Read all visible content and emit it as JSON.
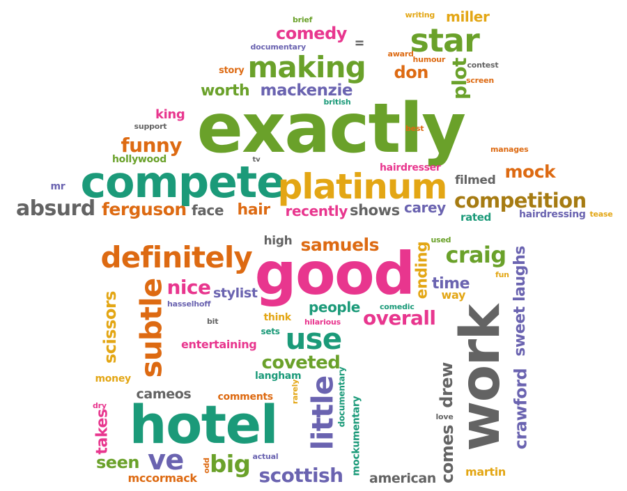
{
  "palette": {
    "green": "#6aa12a",
    "teal": "#1b9a79",
    "orange": "#dd6a12",
    "pink": "#e8368e",
    "purple": "#6a63b0",
    "gold": "#e3a614",
    "gray": "#636363",
    "brown": "#a67b12"
  },
  "words": [
    {
      "text": "exactly",
      "color": "green",
      "vertical": false
    },
    {
      "text": "compete",
      "color": "teal",
      "vertical": false
    },
    {
      "text": "platinum",
      "color": "gold",
      "vertical": false
    },
    {
      "text": "making",
      "color": "green",
      "vertical": false
    },
    {
      "text": "star",
      "color": "green",
      "vertical": false
    },
    {
      "text": "comedy",
      "color": "pink",
      "vertical": false
    },
    {
      "text": "miller",
      "color": "gold",
      "vertical": false
    },
    {
      "text": "brief",
      "color": "green",
      "vertical": false
    },
    {
      "text": "writing",
      "color": "gold",
      "vertical": false
    },
    {
      "text": "documentary",
      "color": "purple",
      "vertical": false
    },
    {
      "text": "ll",
      "color": "gray",
      "vertical": true
    },
    {
      "text": "award",
      "color": "orange",
      "vertical": false
    },
    {
      "text": "humour",
      "color": "orange",
      "vertical": false
    },
    {
      "text": "contest",
      "color": "gray",
      "vertical": false
    },
    {
      "text": "story",
      "color": "orange",
      "vertical": false
    },
    {
      "text": "don",
      "color": "orange",
      "vertical": false
    },
    {
      "text": "plot",
      "color": "green",
      "vertical": true
    },
    {
      "text": "screen",
      "color": "orange",
      "vertical": false
    },
    {
      "text": "worth",
      "color": "green",
      "vertical": false
    },
    {
      "text": "mackenzie",
      "color": "purple",
      "vertical": false
    },
    {
      "text": "british",
      "color": "teal",
      "vertical": false
    },
    {
      "text": "king",
      "color": "pink",
      "vertical": false
    },
    {
      "text": "support",
      "color": "gray",
      "vertical": false
    },
    {
      "text": "best",
      "color": "orange",
      "vertical": false
    },
    {
      "text": "funny",
      "color": "orange",
      "vertical": false
    },
    {
      "text": "hollywood",
      "color": "green",
      "vertical": false
    },
    {
      "text": "tv",
      "color": "gray",
      "vertical": false
    },
    {
      "text": "manages",
      "color": "orange",
      "vertical": false
    },
    {
      "text": "hairdresser",
      "color": "pink",
      "vertical": false
    },
    {
      "text": "mock",
      "color": "orange",
      "vertical": false
    },
    {
      "text": "filmed",
      "color": "gray",
      "vertical": false
    },
    {
      "text": "mr",
      "color": "purple",
      "vertical": false
    },
    {
      "text": "competition",
      "color": "brown",
      "vertical": false
    },
    {
      "text": "absurd",
      "color": "gray",
      "vertical": false
    },
    {
      "text": "ferguson",
      "color": "orange",
      "vertical": false
    },
    {
      "text": "face",
      "color": "gray",
      "vertical": false
    },
    {
      "text": "hair",
      "color": "orange",
      "vertical": false
    },
    {
      "text": "recently",
      "color": "pink",
      "vertical": false
    },
    {
      "text": "shows",
      "color": "gray",
      "vertical": false
    },
    {
      "text": "carey",
      "color": "purple",
      "vertical": false
    },
    {
      "text": "rated",
      "color": "teal",
      "vertical": false
    },
    {
      "text": "hairdressing",
      "color": "purple",
      "vertical": false
    },
    {
      "text": "tease",
      "color": "gold",
      "vertical": false
    },
    {
      "text": "definitely",
      "color": "orange",
      "vertical": false
    },
    {
      "text": "high",
      "color": "gray",
      "vertical": false
    },
    {
      "text": "samuels",
      "color": "orange",
      "vertical": false
    },
    {
      "text": "good",
      "color": "pink",
      "vertical": false
    },
    {
      "text": "ending",
      "color": "gold",
      "vertical": true
    },
    {
      "text": "used",
      "color": "green",
      "vertical": false
    },
    {
      "text": "craig",
      "color": "green",
      "vertical": false
    },
    {
      "text": "laughs",
      "color": "purple",
      "vertical": true
    },
    {
      "text": "fun",
      "color": "gold",
      "vertical": false
    },
    {
      "text": "subtle",
      "color": "orange",
      "vertical": true
    },
    {
      "text": "nice",
      "color": "pink",
      "vertical": false
    },
    {
      "text": "stylist",
      "color": "purple",
      "vertical": false
    },
    {
      "text": "time",
      "color": "purple",
      "vertical": false
    },
    {
      "text": "way",
      "color": "gold",
      "vertical": false
    },
    {
      "text": "hasselhoff",
      "color": "purple",
      "vertical": false
    },
    {
      "text": "people",
      "color": "teal",
      "vertical": false
    },
    {
      "text": "comedic",
      "color": "teal",
      "vertical": false
    },
    {
      "text": "scissors",
      "color": "gold",
      "vertical": true
    },
    {
      "text": "bit",
      "color": "gray",
      "vertical": false
    },
    {
      "text": "think",
      "color": "gold",
      "vertical": false
    },
    {
      "text": "hilarious",
      "color": "pink",
      "vertical": false
    },
    {
      "text": "overall",
      "color": "pink",
      "vertical": false
    },
    {
      "text": "work",
      "color": "gray",
      "vertical": true
    },
    {
      "text": "sweet",
      "color": "purple",
      "vertical": true
    },
    {
      "text": "sets",
      "color": "teal",
      "vertical": false
    },
    {
      "text": "use",
      "color": "teal",
      "vertical": false
    },
    {
      "text": "entertaining",
      "color": "pink",
      "vertical": false
    },
    {
      "text": "coveted",
      "color": "green",
      "vertical": false
    },
    {
      "text": "drew",
      "color": "gray",
      "vertical": true
    },
    {
      "text": "crawford",
      "color": "purple",
      "vertical": true
    },
    {
      "text": "money",
      "color": "gold",
      "vertical": false
    },
    {
      "text": "langham",
      "color": "teal",
      "vertical": false
    },
    {
      "text": "rarely",
      "color": "gold",
      "vertical": true
    },
    {
      "text": "documentary",
      "color": "teal",
      "vertical": true
    },
    {
      "text": "little",
      "color": "purple",
      "vertical": true
    },
    {
      "text": "cameos",
      "color": "gray",
      "vertical": false
    },
    {
      "text": "comments",
      "color": "orange",
      "vertical": false
    },
    {
      "text": "dry",
      "color": "pink",
      "vertical": false
    },
    {
      "text": "love",
      "color": "gray",
      "vertical": false
    },
    {
      "text": "hotel",
      "color": "teal",
      "vertical": false
    },
    {
      "text": "takes",
      "color": "pink",
      "vertical": true
    },
    {
      "text": "mockumentary",
      "color": "teal",
      "vertical": true
    },
    {
      "text": "comes",
      "color": "gray",
      "vertical": true
    },
    {
      "text": "ve",
      "color": "purple",
      "vertical": false
    },
    {
      "text": "seen",
      "color": "green",
      "vertical": false
    },
    {
      "text": "odd",
      "color": "orange",
      "vertical": true
    },
    {
      "text": "big",
      "color": "green",
      "vertical": false
    },
    {
      "text": "actual",
      "color": "purple",
      "vertical": false
    },
    {
      "text": "martin",
      "color": "gold",
      "vertical": false
    },
    {
      "text": "scottish",
      "color": "purple",
      "vertical": false
    },
    {
      "text": "american",
      "color": "gray",
      "vertical": false
    },
    {
      "text": "mccormack",
      "color": "orange",
      "vertical": false
    }
  ]
}
